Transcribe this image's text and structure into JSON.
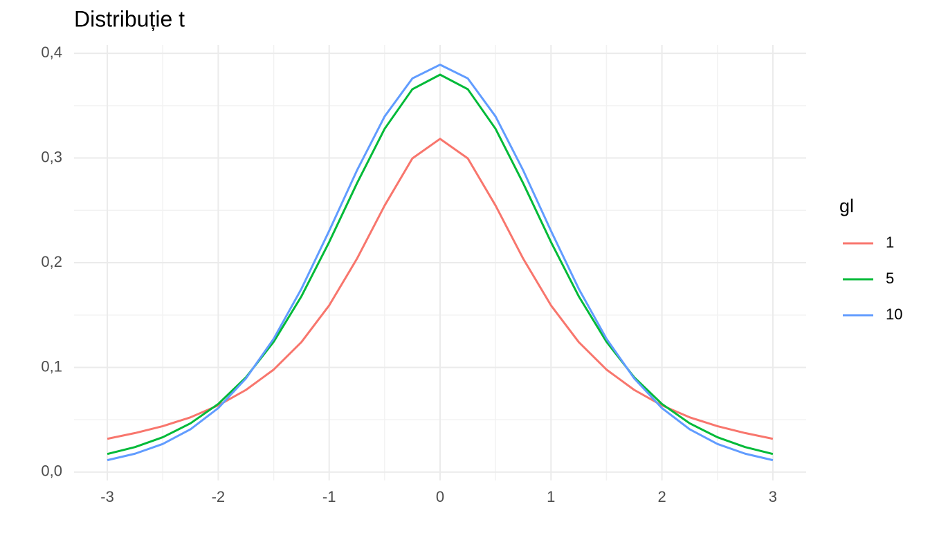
{
  "chart_data": {
    "type": "line",
    "title": "Distribuție t",
    "x": [
      -3,
      -2.75,
      -2.5,
      -2.25,
      -2,
      -1.75,
      -1.5,
      -1.25,
      -1,
      -0.75,
      -0.5,
      -0.25,
      0,
      0.25,
      0.5,
      0.75,
      1,
      1.25,
      1.5,
      1.75,
      2,
      2.25,
      2.5,
      2.75,
      3
    ],
    "series": [
      {
        "name": "1",
        "color": "#F8766D",
        "values": [
          0.0318,
          0.0373,
          0.0439,
          0.0523,
          0.0637,
          0.0785,
          0.0979,
          0.1242,
          0.1592,
          0.2037,
          0.2546,
          0.2996,
          0.3183,
          0.2996,
          0.2546,
          0.2037,
          0.1592,
          0.1242,
          0.0979,
          0.0785,
          0.0637,
          0.0523,
          0.0439,
          0.0373,
          0.0318
        ]
      },
      {
        "name": "5",
        "color": "#00BA38",
        "values": [
          0.0173,
          0.0239,
          0.0333,
          0.0466,
          0.0651,
          0.0905,
          0.1245,
          0.1679,
          0.2197,
          0.2757,
          0.3279,
          0.3657,
          0.3796,
          0.3657,
          0.3279,
          0.2757,
          0.2197,
          0.1679,
          0.1245,
          0.0905,
          0.0651,
          0.0466,
          0.0333,
          0.0239,
          0.0173
        ]
      },
      {
        "name": "10",
        "color": "#619CFF",
        "values": [
          0.0114,
          0.0176,
          0.0269,
          0.0409,
          0.0611,
          0.0895,
          0.1274,
          0.1751,
          0.2304,
          0.288,
          0.3397,
          0.376,
          0.3891,
          0.376,
          0.3397,
          0.288,
          0.2304,
          0.1751,
          0.1274,
          0.0895,
          0.0611,
          0.0409,
          0.0269,
          0.0176,
          0.0114
        ]
      }
    ],
    "legend_title": "gl",
    "legend_position": "right",
    "xlim": [
      -3.3,
      3.3
    ],
    "xticks": [
      -3,
      -2,
      -1,
      0,
      1,
      2,
      3
    ],
    "ylim": [
      -0.008,
      0.408
    ],
    "yticks": [
      {
        "value": 0,
        "label": "0,0"
      },
      {
        "value": 0.1,
        "label": "0,1"
      },
      {
        "value": 0.2,
        "label": "0,2"
      },
      {
        "value": 0.3,
        "label": "0,3"
      },
      {
        "value": 0.4,
        "label": "0,4"
      }
    ],
    "grid": true
  }
}
